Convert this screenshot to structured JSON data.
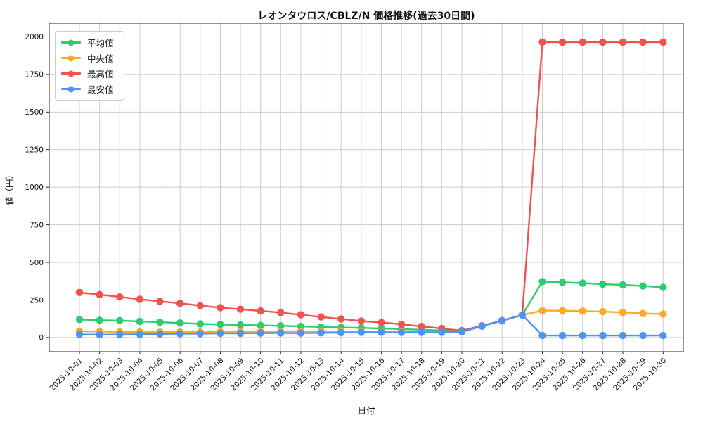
{
  "chart_data": {
    "type": "line",
    "title": "レオンタウロス/CBLZ/N 価格推移(過去30日間)",
    "xlabel": "日付",
    "ylabel": "値（円）",
    "grid": true,
    "legend_position": "upper-left",
    "yticks": [
      0,
      250,
      500,
      750,
      1000,
      1250,
      1500,
      1750,
      2000
    ],
    "ylim": [
      -94,
      2091
    ],
    "x": [
      "2025-10-01",
      "2025-10-02",
      "2025-10-03",
      "2025-10-04",
      "2025-10-05",
      "2025-10-06",
      "2025-10-07",
      "2025-10-08",
      "2025-10-09",
      "2025-10-10",
      "2025-10-11",
      "2025-10-12",
      "2025-10-13",
      "2025-10-14",
      "2025-10-15",
      "2025-10-16",
      "2025-10-17",
      "2025-10-18",
      "2025-10-19",
      "2025-10-20",
      "2025-10-21",
      "2025-10-22",
      "2025-10-23",
      "2025-10-24",
      "2025-10-25",
      "2025-10-26",
      "2025-10-27",
      "2025-10-28",
      "2025-10-29",
      "2025-10-30"
    ],
    "series": [
      {
        "name": "平均値",
        "color": "#2ecc71",
        "values": [
          120,
          115,
          113,
          107,
          102,
          97,
          91,
          87,
          84,
          81,
          78,
          74,
          70,
          67,
          64,
          60,
          56,
          52,
          47,
          44,
          77,
          113,
          150,
          372,
          367,
          362,
          355,
          350,
          343,
          334
        ]
      },
      {
        "name": "中央値",
        "color": "#ffa726",
        "values": [
          42,
          40,
          38,
          37,
          36,
          36,
          37,
          38,
          39,
          40,
          41,
          41,
          41,
          41,
          41,
          40,
          39,
          38,
          37,
          41,
          76,
          112,
          150,
          179,
          179,
          176,
          172,
          167,
          160,
          157
        ]
      },
      {
        "name": "最高値",
        "color": "#ef5350",
        "values": [
          300,
          286,
          270,
          255,
          240,
          228,
          212,
          199,
          188,
          177,
          166,
          151,
          137,
          123,
          110,
          100,
          88,
          74,
          60,
          46,
          78,
          113,
          150,
          1965,
          1965,
          1965,
          1965,
          1965,
          1965,
          1965
        ]
      },
      {
        "name": "最安値",
        "color": "#4d94f5",
        "values": [
          20,
          19,
          20,
          22,
          24,
          25,
          26,
          27,
          28,
          29,
          30,
          29,
          31,
          32,
          34,
          35,
          34,
          34,
          35,
          38,
          76,
          112,
          150,
          13,
          13,
          13,
          13,
          13,
          13,
          13
        ]
      }
    ]
  }
}
